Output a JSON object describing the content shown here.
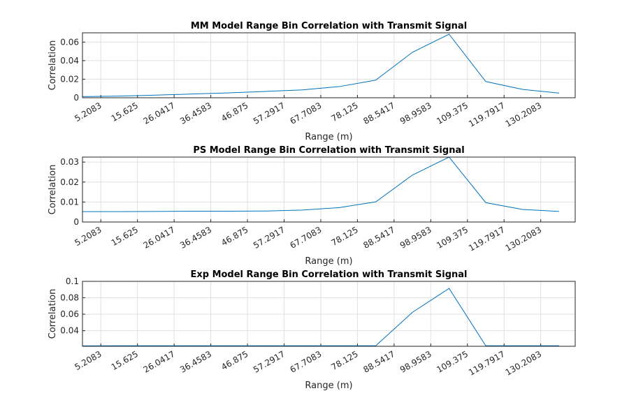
{
  "chart_data": [
    {
      "type": "line",
      "title": "MM Model Range Bin Correlation with Transmit Signal",
      "xlabel": "Range (m)",
      "ylabel": "Correlation",
      "x": [
        0,
        10.4167,
        20.8333,
        31.25,
        41.6667,
        52.0833,
        62.5,
        72.9167,
        83.3333,
        93.75,
        104.1667,
        114.5833,
        125,
        135.4167
      ],
      "series": [
        {
          "name": "MM",
          "color": "#0072bd",
          "values": [
            0.0012,
            0.0018,
            0.0028,
            0.004,
            0.0053,
            0.0068,
            0.0085,
            0.012,
            0.019,
            0.049,
            0.0685,
            0.0175,
            0.009,
            0.005
          ]
        }
      ],
      "xlim": [
        0,
        140
      ],
      "xticks": [
        5.2083,
        15.625,
        26.0417,
        36.4583,
        46.875,
        57.2917,
        67.7083,
        78.125,
        88.5417,
        98.9583,
        109.375,
        119.7917,
        130.2083
      ],
      "ylim": [
        0,
        0.07
      ],
      "yticks": [
        0,
        0.02,
        0.04,
        0.06
      ],
      "grid": true
    },
    {
      "type": "line",
      "title": "PS Model Range Bin Correlation with Transmit Signal",
      "xlabel": "Range (m)",
      "ylabel": "Correlation",
      "x": [
        0,
        10.4167,
        20.8333,
        31.25,
        41.6667,
        52.0833,
        62.5,
        72.9167,
        83.3333,
        93.75,
        104.1667,
        114.5833,
        125,
        135.4167
      ],
      "series": [
        {
          "name": "PS",
          "color": "#0072bd",
          "values": [
            0.0052,
            0.0052,
            0.0053,
            0.0054,
            0.0054,
            0.0055,
            0.006,
            0.0072,
            0.0101,
            0.0235,
            0.0325,
            0.0097,
            0.0063,
            0.0053
          ]
        }
      ],
      "xlim": [
        0,
        140
      ],
      "xticks": [
        5.2083,
        15.625,
        26.0417,
        36.4583,
        46.875,
        57.2917,
        67.7083,
        78.125,
        88.5417,
        98.9583,
        109.375,
        119.7917,
        130.2083
      ],
      "ylim": [
        0,
        0.0325
      ],
      "yticks": [
        0,
        0.01,
        0.02,
        0.03
      ],
      "grid": true
    },
    {
      "type": "line",
      "title": "Exp Model Range Bin Correlation with Transmit Signal",
      "xlabel": "Range (m)",
      "ylabel": "Correlation",
      "x": [
        0,
        10.4167,
        20.8333,
        31.25,
        41.6667,
        52.0833,
        62.5,
        72.9167,
        83.3333,
        93.75,
        104.1667,
        114.5833,
        125,
        135.4167
      ],
      "series": [
        {
          "name": "Exp",
          "color": "#0072bd",
          "values": [
            0.0215,
            0.0216,
            0.0216,
            0.0216,
            0.0216,
            0.0216,
            0.0216,
            0.0216,
            0.0216,
            0.0623,
            0.0914,
            0.0216,
            0.0216,
            0.0216
          ]
        }
      ],
      "xlim": [
        0,
        140
      ],
      "xticks": [
        5.2083,
        15.625,
        26.0417,
        36.4583,
        46.875,
        57.2917,
        67.7083,
        78.125,
        88.5417,
        98.9583,
        109.375,
        119.7917,
        130.2083
      ],
      "ylim": [
        0.021,
        0.1
      ],
      "yticks": [
        0.04,
        0.06,
        0.08,
        0.1
      ],
      "grid": true
    }
  ]
}
